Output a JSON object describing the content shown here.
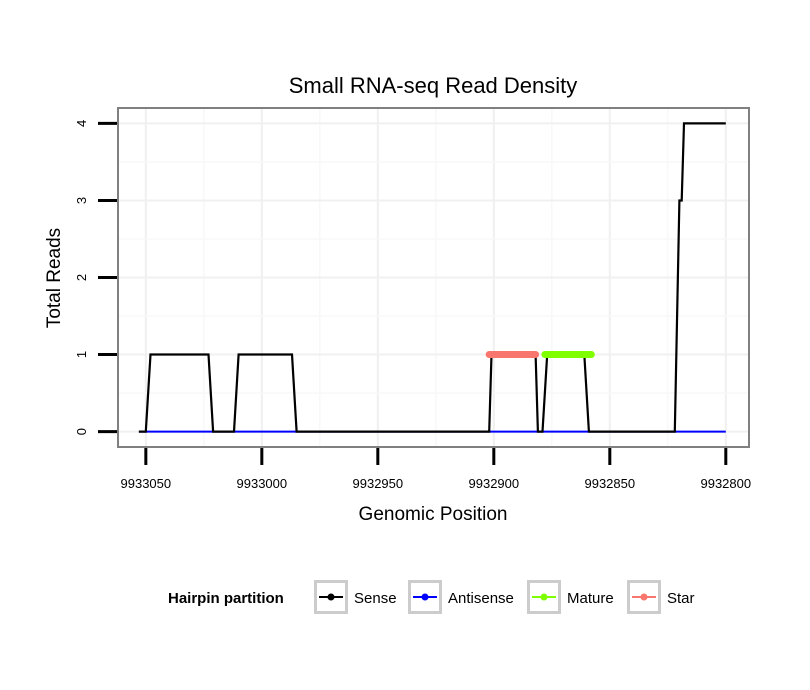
{
  "chart_data": {
    "type": "line",
    "title": "Small RNA-seq Read Density",
    "xlabel": "Genomic Position",
    "ylabel": "Total Reads",
    "xlim": [
      9933062,
      9932790
    ],
    "ylim": [
      -0.2,
      4.2
    ],
    "x_reversed": true,
    "grid": true,
    "xticks": [
      9933050,
      9933000,
      9932950,
      9932900,
      9932850,
      9932800
    ],
    "xtick_labels": [
      "9933050",
      "9933000",
      "9932950",
      "9932900",
      "9932850",
      "9932800"
    ],
    "yticks": [
      0,
      1,
      2,
      3,
      4
    ],
    "ytick_labels": [
      "0",
      "1",
      "2",
      "3",
      "4"
    ],
    "legend_title": "Hairpin partition",
    "legend_position": "bottom",
    "series": [
      {
        "name": "Sense",
        "color": "#000000",
        "points": [
          [
            9933053,
            0
          ],
          [
            9933050,
            0
          ],
          [
            9933048,
            1
          ],
          [
            9933023,
            1
          ],
          [
            9933021,
            0
          ],
          [
            9933012,
            0
          ],
          [
            9933010,
            1
          ],
          [
            9932987,
            1
          ],
          [
            9932985,
            0
          ],
          [
            9932902,
            0
          ],
          [
            9932901,
            1
          ],
          [
            9932882,
            1
          ],
          [
            9932881,
            0
          ],
          [
            9932879,
            0
          ],
          [
            9932877,
            1
          ],
          [
            9932861,
            1
          ],
          [
            9932859,
            0
          ],
          [
            9932822,
            0
          ],
          [
            9932820,
            3
          ],
          [
            9932819,
            3
          ],
          [
            9932818,
            4
          ],
          [
            9932800,
            4
          ]
        ]
      },
      {
        "name": "Antisense",
        "color": "#0000ff",
        "points": [
          [
            9933053,
            0
          ],
          [
            9932800,
            0
          ]
        ]
      },
      {
        "name": "Mature",
        "color": "#80ff00",
        "points": [
          [
            9932878,
            1
          ],
          [
            9932858,
            1
          ]
        ]
      },
      {
        "name": "Star",
        "color": "#f8766d",
        "points": [
          [
            9932902,
            1
          ],
          [
            9932882,
            1
          ]
        ]
      }
    ]
  }
}
